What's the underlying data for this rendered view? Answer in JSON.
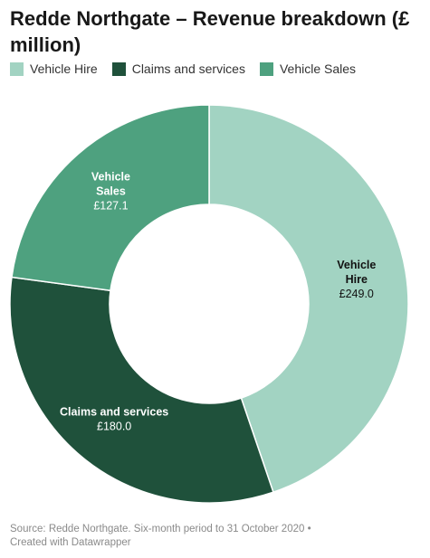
{
  "title": "Redde Northgate – Revenue breakdown (£ million)",
  "legend": [
    {
      "label": "Vehicle Hire",
      "color": "#a2d3c2"
    },
    {
      "label": "Claims and services",
      "color": "#1f513b"
    },
    {
      "label": "Vehicle Sales",
      "color": "#4ea17f"
    }
  ],
  "chart_data": {
    "type": "pie",
    "title": "Redde Northgate – Revenue breakdown (£ million)",
    "categories": [
      "Vehicle Hire",
      "Claims and services",
      "Vehicle Sales"
    ],
    "values": [
      249.0,
      180.0,
      127.1
    ],
    "value_labels": [
      "£249.0",
      "£180.0",
      "£127.1"
    ],
    "slice_label_lines": [
      [
        "Vehicle",
        "Hire"
      ],
      [
        "Claims and services"
      ],
      [
        "Vehicle",
        "Sales"
      ]
    ],
    "colors": [
      "#a2d3c2",
      "#1f513b",
      "#4ea17f"
    ],
    "label_colors": [
      "#111111",
      "#ffffff",
      "#ffffff"
    ],
    "donut": true,
    "legend_position": "top-left"
  },
  "footer": {
    "line1": "Source: Redde Northgate. Six-month period to 31 October 2020 •",
    "line2": "Created with Datawrapper"
  }
}
